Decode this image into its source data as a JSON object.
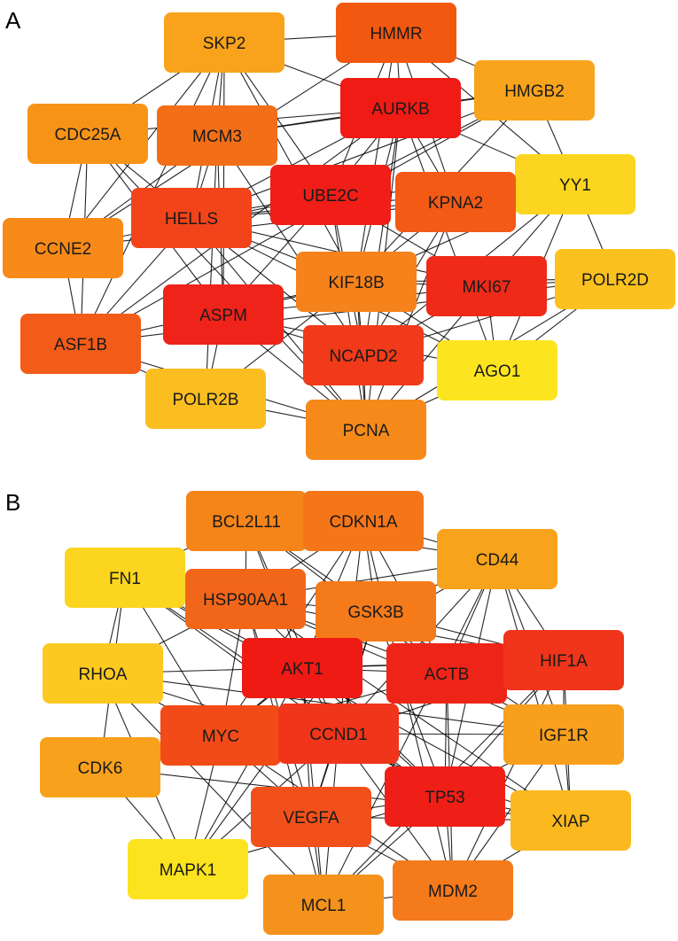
{
  "panels": [
    {
      "label": "A",
      "nodes": [
        {
          "id": "HMMR",
          "label": "HMMR",
          "color": "#F2580F"
        },
        {
          "id": "SKP2",
          "label": "SKP2",
          "color": "#F8A31B"
        },
        {
          "id": "AURKB",
          "label": "AURKB",
          "color": "#F01B15"
        },
        {
          "id": "HMGB2",
          "label": "HMGB2",
          "color": "#F8A41C"
        },
        {
          "id": "CDC25A",
          "label": "CDC25A",
          "color": "#F79418"
        },
        {
          "id": "MCM3",
          "label": "MCM3",
          "color": "#F26E17"
        },
        {
          "id": "YY1",
          "label": "YY1",
          "color": "#FBD51F"
        },
        {
          "id": "UBE2C",
          "label": "UBE2C",
          "color": "#F01E17"
        },
        {
          "id": "KPNA2",
          "label": "KPNA2",
          "color": "#F25A16"
        },
        {
          "id": "HELLS",
          "label": "HELLS",
          "color": "#F2431A"
        },
        {
          "id": "CCNE2",
          "label": "CCNE2",
          "color": "#F78A18"
        },
        {
          "id": "KIF18B",
          "label": "KIF18B",
          "color": "#F5821A"
        },
        {
          "id": "MKI67",
          "label": "MKI67",
          "color": "#EF2A19"
        },
        {
          "id": "POLR2D",
          "label": "POLR2D",
          "color": "#FBC11F"
        },
        {
          "id": "ASPM",
          "label": "ASPM",
          "color": "#F0231A"
        },
        {
          "id": "ASF1B",
          "label": "ASF1B",
          "color": "#F25C18"
        },
        {
          "id": "NCAPD2",
          "label": "NCAPD2",
          "color": "#F03A1A"
        },
        {
          "id": "AGO1",
          "label": "AGO1",
          "color": "#FCE51F"
        },
        {
          "id": "POLR2B",
          "label": "POLR2B",
          "color": "#FBBE20"
        },
        {
          "id": "PCNA",
          "label": "PCNA",
          "color": "#F58A1B"
        }
      ]
    },
    {
      "label": "B",
      "nodes": [
        {
          "id": "BCL2L11",
          "label": "BCL2L11",
          "color": "#F58419"
        },
        {
          "id": "CDKN1A",
          "label": "CDKN1A",
          "color": "#F57619"
        },
        {
          "id": "FN1",
          "label": "FN1",
          "color": "#FBD51F"
        },
        {
          "id": "CD44",
          "label": "CD44",
          "color": "#F8A31C"
        },
        {
          "id": "HSP90AA1",
          "label": "HSP90AA1",
          "color": "#F2661A"
        },
        {
          "id": "GSK3B",
          "label": "GSK3B",
          "color": "#F57A1A"
        },
        {
          "id": "RHOA",
          "label": "RHOA",
          "color": "#FBC920"
        },
        {
          "id": "AKT1",
          "label": "AKT1",
          "color": "#EF1A14"
        },
        {
          "id": "ACTB",
          "label": "ACTB",
          "color": "#EF2418"
        },
        {
          "id": "HIF1A",
          "label": "HIF1A",
          "color": "#F0351A"
        },
        {
          "id": "MYC",
          "label": "MYC",
          "color": "#F24B18"
        },
        {
          "id": "CCND1",
          "label": "CCND1",
          "color": "#F0351A"
        },
        {
          "id": "IGF1R",
          "label": "IGF1R",
          "color": "#F8A01C"
        },
        {
          "id": "CDK6",
          "label": "CDK6",
          "color": "#F8A11C"
        },
        {
          "id": "TP53",
          "label": "TP53",
          "color": "#EF1E17"
        },
        {
          "id": "VEGFA",
          "label": "VEGFA",
          "color": "#F2501A"
        },
        {
          "id": "XIAP",
          "label": "XIAP",
          "color": "#FBB91F"
        },
        {
          "id": "MAPK1",
          "label": "MAPK1",
          "color": "#FCE31F"
        },
        {
          "id": "MCL1",
          "label": "MCL1",
          "color": "#F5921B"
        },
        {
          "id": "MDM2",
          "label": "MDM2",
          "color": "#F57A1B"
        }
      ]
    }
  ]
}
